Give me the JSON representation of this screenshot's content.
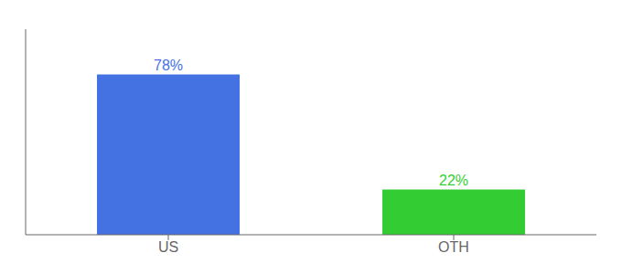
{
  "chart_data": {
    "type": "bar",
    "categories": [
      "US",
      "OTH"
    ],
    "values": [
      78,
      22
    ],
    "value_labels": [
      "78%",
      "22%"
    ],
    "colors": [
      "#4472E3",
      "#33CC33"
    ],
    "ylim": [
      0,
      100
    ],
    "data_labels": true,
    "tick_labels": "x"
  }
}
